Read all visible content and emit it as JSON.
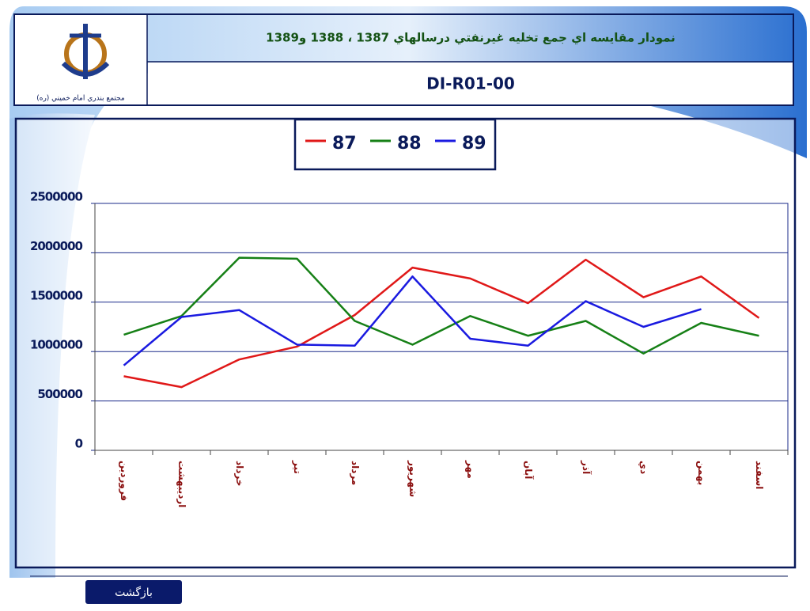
{
  "header": {
    "title": "نمودار مقايسه اي جمع تخليه غيرنفتي درسالهاي 1387 ، 1388 و1389",
    "code": "DI-R01-00",
    "logo_caption": "مجتمع بندري امام خميني (ره)"
  },
  "chart_data": {
    "type": "line",
    "categories": [
      "فروردين",
      "ارديبهشت",
      "خرداد",
      "تير",
      "مرداد",
      "شهريور",
      "مهر",
      "آبان",
      "آذر",
      "دي",
      "بهمن",
      "اسفند"
    ],
    "series": [
      {
        "name": "87",
        "color": "#e01818",
        "values": [
          750000,
          640000,
          920000,
          1050000,
          1370000,
          1850000,
          1740000,
          1490000,
          1930000,
          1550000,
          1760000,
          1340000
        ]
      },
      {
        "name": "88",
        "color": "#168016",
        "values": [
          1170000,
          1360000,
          1950000,
          1940000,
          1310000,
          1070000,
          1360000,
          1160000,
          1310000,
          980000,
          1290000,
          1160000
        ]
      },
      {
        "name": "89",
        "color": "#1a1ae0",
        "values": [
          860000,
          1350000,
          1420000,
          1070000,
          1060000,
          1760000,
          1130000,
          1060000,
          1510000,
          1250000,
          1430000,
          null
        ]
      }
    ],
    "ylim": [
      0,
      2500000
    ],
    "yticks": [
      0,
      500000,
      1000000,
      1500000,
      2000000,
      2500000
    ],
    "grid": true,
    "legend": "top"
  },
  "nav": {
    "back": "بازگشت"
  }
}
